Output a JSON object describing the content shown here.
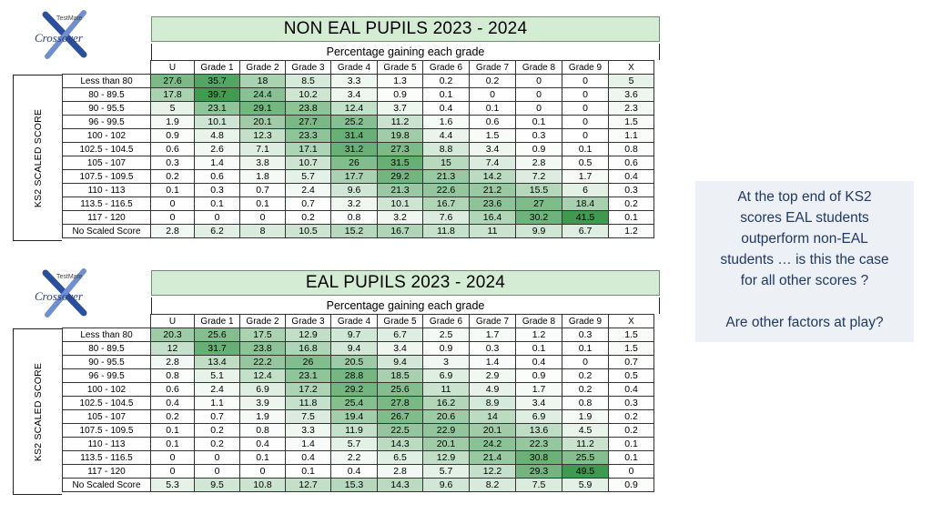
{
  "logo": {
    "small_text": "TestMate",
    "text": "Crossover"
  },
  "subtitle": "Percentage gaining each grade",
  "side_label": "KS2 SCALED SCORE",
  "columns": [
    "U",
    "Grade 1",
    "Grade 2",
    "Grade 3",
    "Grade 4",
    "Grade 5",
    "Grade 6",
    "Grade 7",
    "Grade 8",
    "Grade 9",
    "X"
  ],
  "row_labels": [
    "Less than 80",
    "80 - 89.5",
    "90 - 95.5",
    "96 - 99.5",
    "100 - 102",
    "102.5 - 104.5",
    "105 - 107",
    "107.5 - 109.5",
    "110 - 113",
    "113.5 - 116.5",
    "117 - 120",
    "No Scaled Score"
  ],
  "tables": [
    {
      "title": "NON EAL PUPILS 2023 - 2024",
      "rows": [
        [
          27.6,
          35.7,
          18,
          8.5,
          3.3,
          1.3,
          0.2,
          0.2,
          0,
          0,
          5
        ],
        [
          17.8,
          39.7,
          24.4,
          10.2,
          3.4,
          0.9,
          0.1,
          0,
          0,
          0,
          3.6
        ],
        [
          5,
          23.1,
          29.1,
          23.8,
          12.4,
          3.7,
          0.4,
          0.1,
          0,
          0,
          2.3
        ],
        [
          1.9,
          10.1,
          20.1,
          27.7,
          25.2,
          11.2,
          1.6,
          0.6,
          0.1,
          0,
          1.5
        ],
        [
          0.9,
          4.8,
          12.3,
          23.3,
          31.4,
          19.8,
          4.4,
          1.5,
          0.3,
          0,
          1.1
        ],
        [
          0.6,
          2.6,
          7.1,
          17.1,
          31.2,
          27.3,
          8.8,
          3.4,
          0.9,
          0.1,
          0.8
        ],
        [
          0.3,
          1.4,
          3.8,
          10.7,
          26,
          31.5,
          15,
          7.4,
          2.8,
          0.5,
          0.6
        ],
        [
          0.2,
          0.6,
          1.8,
          5.7,
          17.7,
          29.2,
          21.3,
          14.2,
          7.2,
          1.7,
          0.4
        ],
        [
          0.1,
          0.3,
          0.7,
          2.4,
          9.6,
          21.3,
          22.6,
          21.2,
          15.5,
          6,
          0.3
        ],
        [
          0,
          0.1,
          0.1,
          0.7,
          3.2,
          10.1,
          16.7,
          23.6,
          27,
          18.4,
          0.2
        ],
        [
          0,
          0,
          0,
          0.2,
          0.8,
          3.2,
          7.6,
          16.4,
          30.2,
          41.5,
          0.1
        ],
        [
          2.8,
          6.2,
          8,
          10.5,
          15.2,
          16.7,
          11.8,
          11,
          9.9,
          6.7,
          1.2
        ]
      ]
    },
    {
      "title": "EAL PUPILS 2023 - 2024",
      "rows": [
        [
          20.3,
          25.6,
          17.5,
          12.9,
          9.7,
          6.7,
          2.5,
          1.7,
          1.2,
          0.3,
          1.5
        ],
        [
          12,
          31.7,
          23.8,
          16.8,
          9.4,
          3.4,
          0.9,
          0.3,
          0.1,
          0.1,
          1.5
        ],
        [
          2.8,
          13.4,
          22.2,
          26,
          20.5,
          9.4,
          3,
          1.4,
          0.4,
          0,
          0.7
        ],
        [
          0.8,
          5.1,
          12.4,
          23.1,
          28.8,
          18.5,
          6.9,
          2.9,
          0.9,
          0.2,
          0.5
        ],
        [
          0.6,
          2.4,
          6.9,
          17.2,
          29.2,
          25.6,
          11,
          4.9,
          1.7,
          0.2,
          0.4
        ],
        [
          0.4,
          1.1,
          3.9,
          11.8,
          25.4,
          27.8,
          16.2,
          8.9,
          3.4,
          0.8,
          0.3
        ],
        [
          0.2,
          0.7,
          1.9,
          7.5,
          19.4,
          26.7,
          20.6,
          14,
          6.9,
          1.9,
          0.2
        ],
        [
          0.1,
          0.2,
          0.8,
          3.3,
          11.9,
          22.5,
          22.9,
          20.1,
          13.6,
          4.5,
          0.2
        ],
        [
          0.1,
          0.2,
          0.4,
          1.4,
          5.7,
          14.3,
          20.1,
          24.2,
          22.3,
          11.2,
          0.1
        ],
        [
          0,
          0,
          0.1,
          0.4,
          2.2,
          6.5,
          12.9,
          21.4,
          30.8,
          25.5,
          0.1
        ],
        [
          0,
          0,
          0,
          0.1,
          0.4,
          2.8,
          5.7,
          12.2,
          29.3,
          49.5,
          0
        ],
        [
          5.3,
          9.5,
          10.8,
          12.7,
          15.3,
          14.3,
          9.6,
          8.2,
          7.5,
          5.9,
          0.9
        ]
      ]
    }
  ],
  "note": {
    "line1": "At the top end of KS2",
    "line2": "scores EAL students",
    "line3": "outperform non-EAL",
    "line4": "students … is this the case",
    "line5": "for all other scores ?",
    "line6": "Are other factors at play?"
  },
  "colors": {
    "title_bg": "#d5ecd4",
    "note_bg": "#edf1f5",
    "note_text": "#1f3864",
    "heat_high": "#3f9a50",
    "heat_low": "#ffffff"
  }
}
